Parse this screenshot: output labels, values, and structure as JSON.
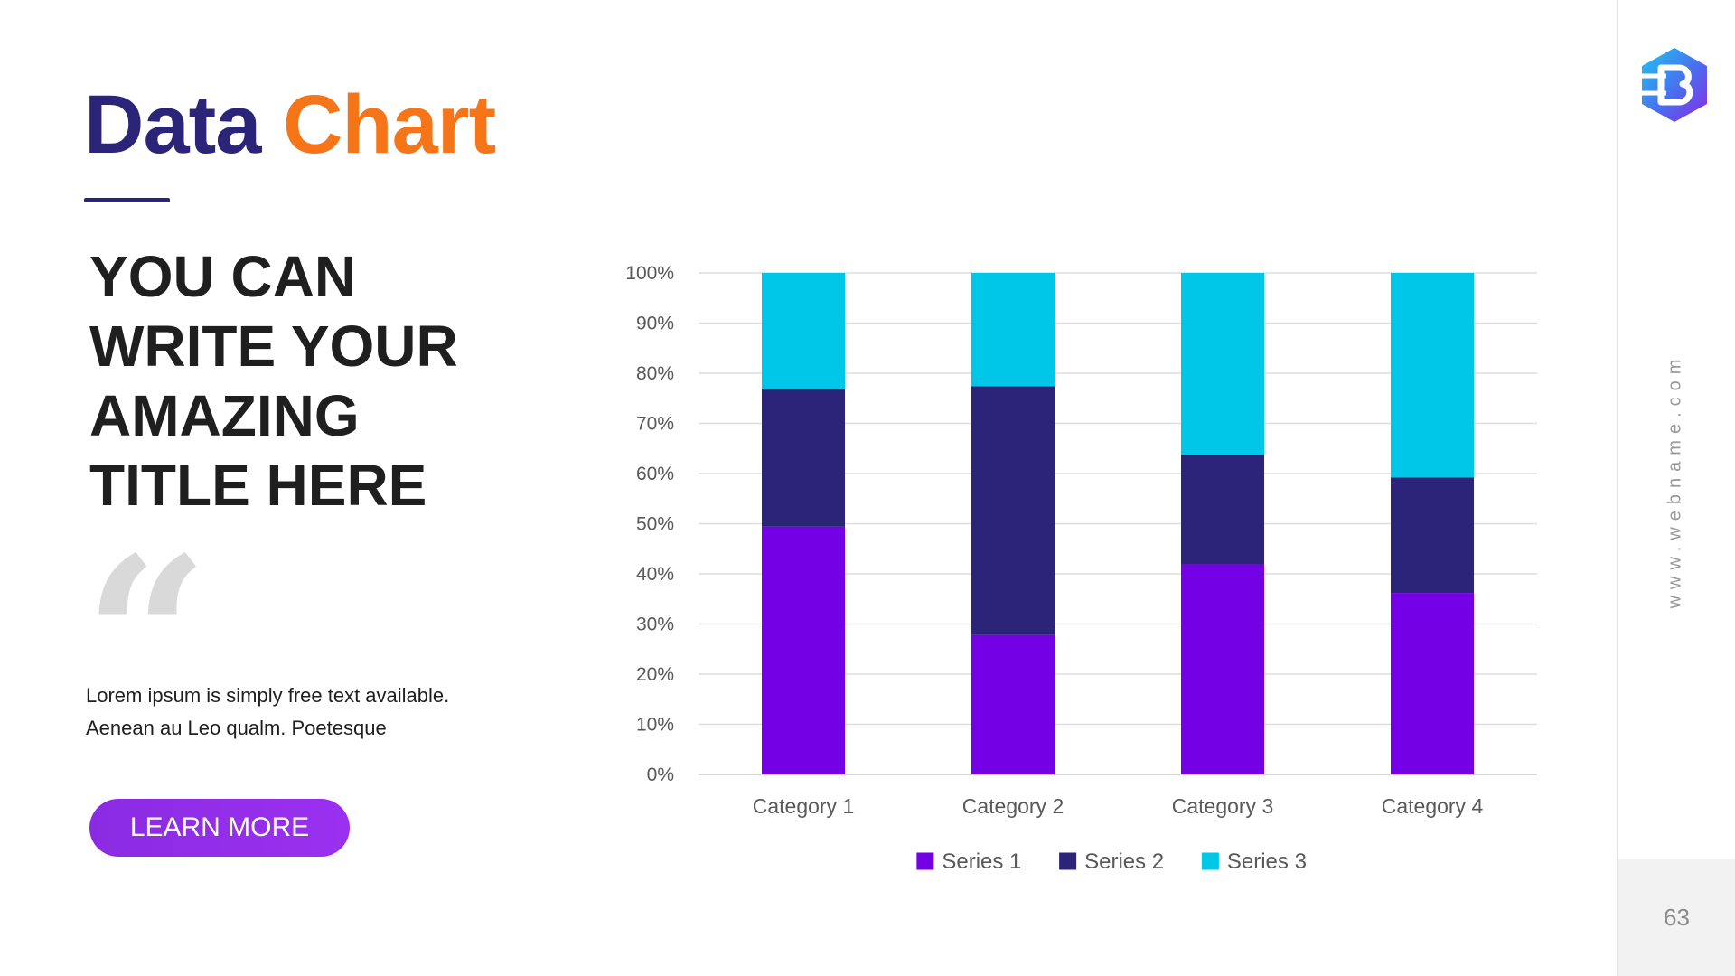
{
  "slide": {
    "title_word1": "Data",
    "title_word2": "Chart",
    "headline": [
      "YOU CAN",
      "WRITE YOUR",
      "AMAZING",
      "TITLE HERE"
    ],
    "body": [
      "Lorem ipsum is simply free text available.",
      "Aenean au Leo qualm. Poetesque"
    ],
    "button_label": "LEARN MORE",
    "quote_glyph": "“",
    "website": "www.webname.com",
    "page_number": "63"
  },
  "colors": {
    "title_primary": "#2b2478",
    "title_accent": "#f57518",
    "button": "#8a2be2",
    "series1": "#7400e6",
    "series2": "#2b2478",
    "series3": "#00c6e8"
  },
  "chart_data": {
    "type": "bar",
    "stacked": "percent",
    "categories": [
      "Category 1",
      "Category 2",
      "Category 3",
      "Category 4"
    ],
    "series": [
      {
        "name": "Series 1",
        "values": [
          49.4,
          27.8,
          41.9,
          36.2
        ]
      },
      {
        "name": "Series 2",
        "values": [
          27.4,
          49.6,
          21.8,
          23.0
        ]
      },
      {
        "name": "Series 3",
        "values": [
          23.2,
          22.6,
          36.3,
          40.8
        ]
      }
    ],
    "ylim": [
      0,
      100
    ],
    "yticks": [
      "0%",
      "10%",
      "20%",
      "30%",
      "40%",
      "50%",
      "60%",
      "70%",
      "80%",
      "90%",
      "100%"
    ],
    "grid": true,
    "legend": "bottom"
  }
}
